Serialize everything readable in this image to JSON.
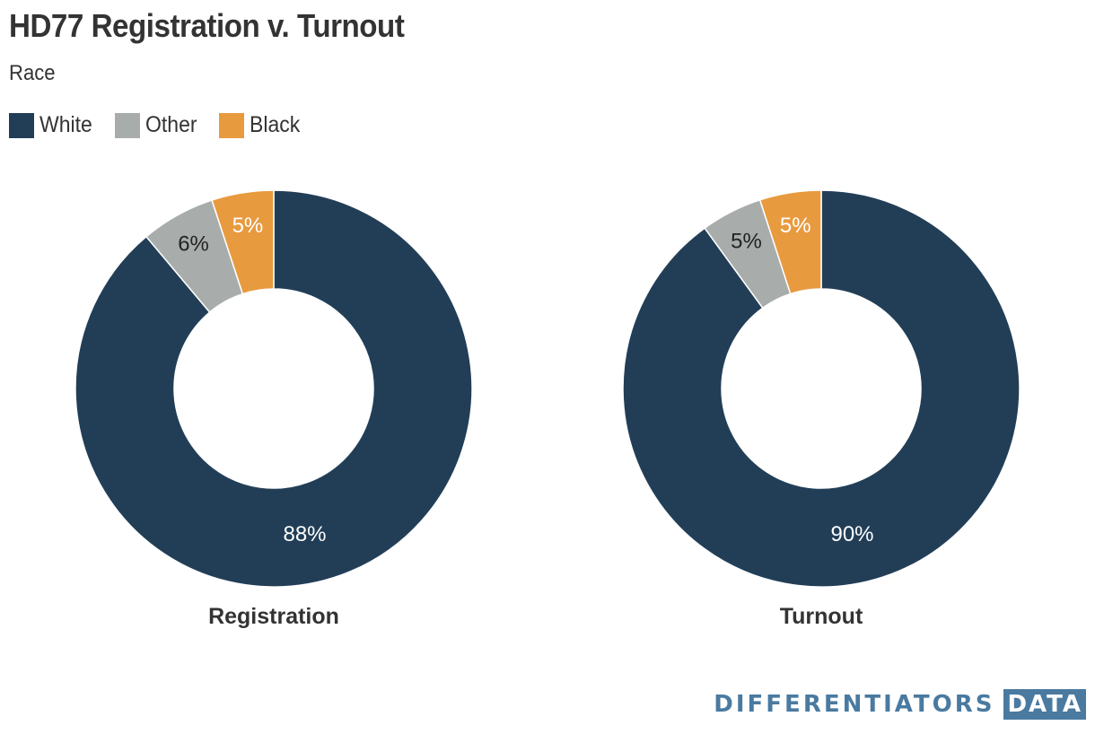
{
  "header": {
    "title": "HD77 Registration v. Turnout",
    "subtitle": "Race"
  },
  "legend": {
    "items": [
      {
        "label": "White",
        "color": "#223e57"
      },
      {
        "label": "Other",
        "color": "#a8adac"
      },
      {
        "label": "Black",
        "color": "#e89a3f"
      }
    ]
  },
  "chart_data": [
    {
      "type": "pie",
      "variant": "donut",
      "title": "Registration",
      "categories": [
        "White",
        "Other",
        "Black"
      ],
      "values": [
        88,
        6,
        5
      ],
      "labels": [
        "88%",
        "6%",
        "5%"
      ],
      "colors": [
        "#223e57",
        "#a8adac",
        "#e89a3f"
      ],
      "label_colors": [
        "#ffffff",
        "#222222",
        "#ffffff"
      ],
      "title_position": "bottom"
    },
    {
      "type": "pie",
      "variant": "donut",
      "title": "Turnout",
      "categories": [
        "White",
        "Other",
        "Black"
      ],
      "values": [
        90,
        5,
        5
      ],
      "labels": [
        "90%",
        "5%",
        "5%"
      ],
      "colors": [
        "#223e57",
        "#a8adac",
        "#e89a3f"
      ],
      "label_colors": [
        "#ffffff",
        "#222222",
        "#ffffff"
      ],
      "title_position": "bottom"
    }
  ],
  "brand": {
    "text": "DIFFERENTIATORS",
    "box_text": "DATA",
    "color": "#4a7aa0"
  }
}
